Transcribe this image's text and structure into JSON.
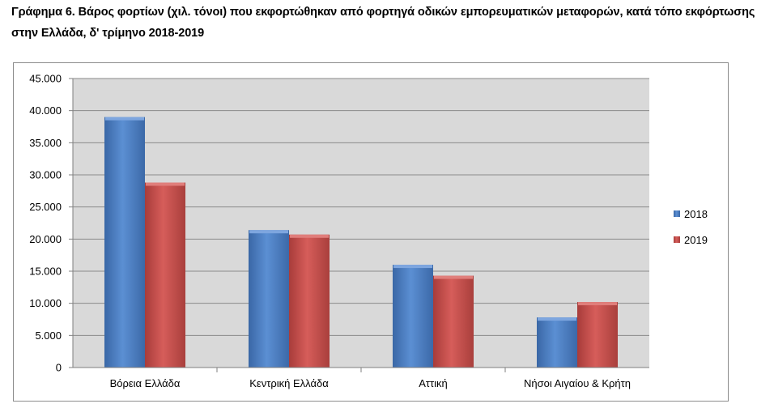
{
  "title": "Γράφημα 6. Βάρος φορτίων (χιλ. τόνοι) που εκφορτώθηκαν από φορτηγά οδικών εμπορευματικών μεταφορών, κατά τόπο εκφόρτωσης στην Ελλάδα, δ' τρίμηνο 2018-2019",
  "chart_data": {
    "type": "bar",
    "title": "Γράφημα 6. Βάρος φορτίων (χιλ. τόνοι) που εκφορτώθηκαν από φορτηγά οδικών εμπορευματικών μεταφορών, κατά τόπο εκφόρτωσης στην Ελλάδα, δ' τρίμηνο 2018-2019",
    "categories": [
      "Βόρεια Ελλάδα",
      "Κεντρική Ελλάδα",
      "Αττική",
      "Νήσοι Αιγαίου & Κρήτη"
    ],
    "series": [
      {
        "name": "2018",
        "values": [
          39000,
          21400,
          16000,
          7800
        ],
        "color": "#4f81bd"
      },
      {
        "name": "2019",
        "values": [
          28800,
          20700,
          14300,
          10200
        ],
        "color": "#c0504d"
      }
    ],
    "ylim": [
      0,
      45000
    ],
    "yticks": [
      "0",
      "5.000",
      "10.000",
      "15.000",
      "20.000",
      "25.000",
      "30.000",
      "35.000",
      "40.000",
      "45.000"
    ],
    "xlabel": "",
    "ylabel": "",
    "grid": true,
    "legend": "right",
    "plot_background": "#d9d9d9"
  }
}
